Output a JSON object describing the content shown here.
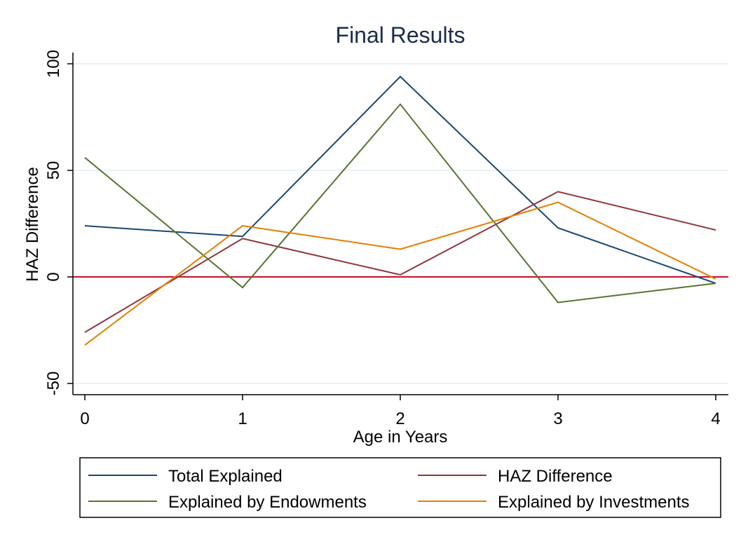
{
  "chart_data": {
    "type": "line",
    "title": "Final Results",
    "xlabel": "Age in Years",
    "ylabel": "HAZ Difference",
    "x": [
      0,
      1,
      2,
      3,
      4
    ],
    "x_ticks": [
      "0",
      "1",
      "2",
      "3",
      "4"
    ],
    "y_ticks": [
      "-50",
      "0",
      "50",
      "100"
    ],
    "xlim": [
      0,
      4
    ],
    "ylim": [
      -50,
      100
    ],
    "grid": true,
    "reference_line": {
      "y": 0,
      "color": "#c8102e"
    },
    "legend_position": "bottom",
    "series": [
      {
        "name": "Total Explained",
        "color": "#1a476f",
        "values": [
          24,
          19,
          94,
          23,
          -3
        ]
      },
      {
        "name": "HAZ Difference",
        "color": "#90353b",
        "values": [
          -26,
          18,
          1,
          40,
          22
        ]
      },
      {
        "name": "Explained by Endowments",
        "color": "#55752f",
        "values": [
          56,
          -5,
          81,
          -12,
          -3
        ]
      },
      {
        "name": "Explained by Investments",
        "color": "#e37e00",
        "values": [
          -32,
          24,
          13,
          35,
          -1
        ]
      }
    ]
  }
}
